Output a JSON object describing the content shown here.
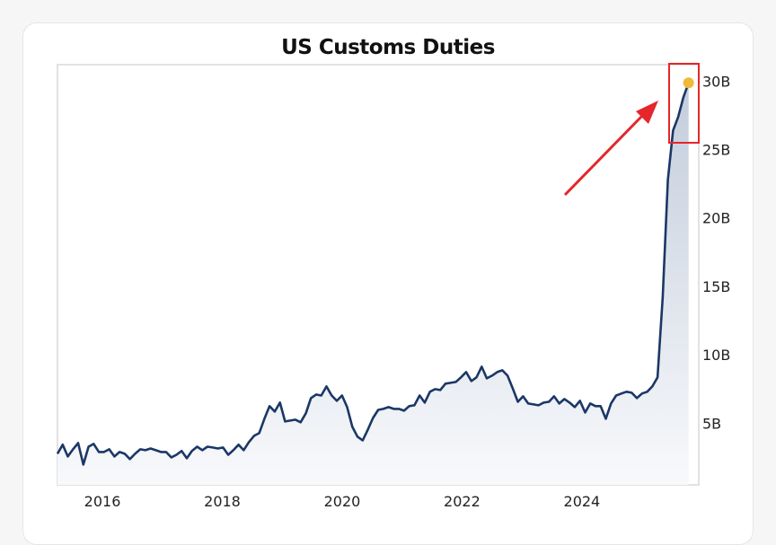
{
  "chart_data": {
    "type": "area",
    "title": "US Customs Duties",
    "xlabel": "",
    "ylabel": "",
    "x_start": 2015.25,
    "x_end": 2025.78,
    "xlim": [
      2015.25,
      2025.95
    ],
    "ylim": [
      0.5,
      31.2
    ],
    "x_ticks": [
      2016,
      2018,
      2020,
      2022,
      2024
    ],
    "x_tick_labels": [
      "2016",
      "2018",
      "2020",
      "2022",
      "2024"
    ],
    "y_ticks": [
      5,
      10,
      15,
      20,
      25,
      30
    ],
    "y_tick_labels": [
      "5B",
      "10B",
      "15B",
      "20B",
      "25B",
      "30B"
    ],
    "unit": "billions USD",
    "values": [
      2.77,
      3.43,
      2.57,
      3.1,
      3.56,
      1.98,
      3.29,
      3.49,
      2.9,
      2.9,
      3.1,
      2.57,
      2.9,
      2.77,
      2.38,
      2.77,
      3.1,
      3.03,
      3.16,
      3.03,
      2.9,
      2.9,
      2.51,
      2.7,
      2.97,
      2.44,
      2.97,
      3.29,
      3.03,
      3.29,
      3.23,
      3.16,
      3.23,
      2.7,
      3.03,
      3.43,
      3.03,
      3.62,
      4.08,
      4.28,
      5.33,
      6.25,
      5.85,
      6.51,
      5.13,
      5.2,
      5.26,
      5.07,
      5.72,
      6.84,
      7.1,
      7.03,
      7.69,
      7.03,
      6.64,
      7.03,
      6.18,
      4.74,
      4.02,
      3.75,
      4.54,
      5.39,
      5.98,
      6.05,
      6.18,
      6.05,
      6.05,
      5.92,
      6.25,
      6.31,
      7.03,
      6.51,
      7.3,
      7.49,
      7.43,
      7.89,
      7.95,
      8.02,
      8.35,
      8.74,
      8.08,
      8.35,
      9.13,
      8.28,
      8.48,
      8.74,
      8.87,
      8.48,
      7.56,
      6.57,
      6.97,
      6.44,
      6.38,
      6.31,
      6.51,
      6.57,
      6.97,
      6.44,
      6.77,
      6.51,
      6.18,
      6.64,
      5.79,
      6.44,
      6.25,
      6.25,
      5.33,
      6.44,
      7.03,
      7.17,
      7.3,
      7.23,
      6.84,
      7.17,
      7.3,
      7.69,
      8.35,
      14.25,
      22.78,
      26.39,
      27.38,
      28.82,
      29.87
    ],
    "highlight": {
      "label": "latest",
      "value": 29.87
    },
    "annotations": [
      "red-arrow pointing to latest value",
      "red box around latest values"
    ],
    "colors": {
      "line": "#1b3766",
      "marker": "#f0b93a",
      "annotation": "#e5262a",
      "fill_top": "#c3cddc",
      "fill_bottom": "#f8f9fb"
    },
    "grid": false,
    "legend": "none"
  }
}
